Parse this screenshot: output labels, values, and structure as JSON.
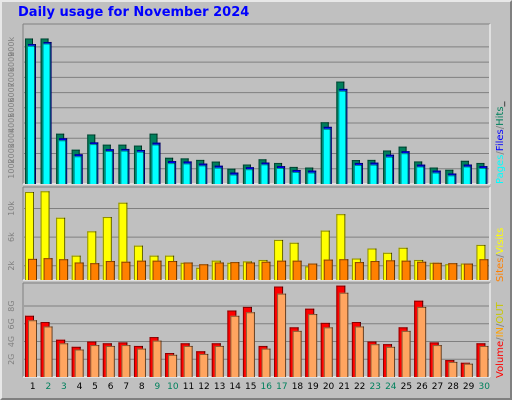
{
  "title": "Daily usage for November 2024",
  "colors": {
    "hits": "#00ffff",
    "files": "#0000ff",
    "pages": "#00805c",
    "sites": "#ff8000",
    "visits": "#ffff00",
    "volume": "#ff0000",
    "in_out": "#ffa560",
    "panel_bg": "#c0c0c0",
    "grid": "#808080",
    "weekend_label": "#00805c",
    "weekday_label": "#000000"
  },
  "chart_data": [
    {
      "type": "bar",
      "title": "Daily usage for November 2024",
      "legend": [
        "Pages",
        "/",
        "Files",
        "/",
        "Hits",
        "_"
      ],
      "y_ticks": [
        "100k",
        "200k",
        "300k",
        "400k",
        "500k",
        "600k",
        "700k",
        "800k",
        "900k"
      ],
      "ylim": [
        0,
        1050000
      ],
      "categories": [
        "1",
        "2",
        "3",
        "4",
        "5",
        "6",
        "7",
        "8",
        "9",
        "10",
        "11",
        "12",
        "13",
        "14",
        "15",
        "16",
        "17",
        "18",
        "19",
        "20",
        "21",
        "22",
        "23",
        "24",
        "25",
        "26",
        "27",
        "28",
        "29",
        "30"
      ],
      "series": [
        {
          "name": "Hits",
          "values": [
            920000,
            935000,
            300000,
            195000,
            275000,
            230000,
            232000,
            225000,
            272000,
            150000,
            148000,
            135000,
            120000,
            75000,
            110000,
            142000,
            118000,
            92000,
            88000,
            375000,
            625000,
            138000,
            140000,
            192000,
            215000,
            128000,
            88000,
            70000,
            128000,
            118000
          ]
        },
        {
          "name": "Files",
          "values": [
            918000,
            932000,
            300000,
            195000,
            273000,
            228000,
            230000,
            223000,
            271000,
            150000,
            148000,
            134000,
            120000,
            75000,
            110000,
            141000,
            117000,
            92000,
            88000,
            375000,
            624000,
            138000,
            140000,
            192000,
            215000,
            127000,
            88000,
            69000,
            128000,
            117000
          ]
        },
        {
          "name": "Pages",
          "values": [
            955000,
            955000,
            330000,
            225000,
            325000,
            258000,
            258000,
            252000,
            330000,
            172000,
            168000,
            158000,
            147000,
            100000,
            128000,
            162000,
            138000,
            112000,
            108000,
            405000,
            672000,
            157000,
            158000,
            220000,
            245000,
            148000,
            108000,
            93000,
            152000,
            138000
          ]
        }
      ]
    },
    {
      "type": "bar",
      "legend": [
        "Sites",
        "/",
        "Visits"
      ],
      "y_ticks": [
        "2k",
        "6k",
        "10k"
      ],
      "ylim": [
        0,
        13000
      ],
      "categories": [
        "1",
        "2",
        "3",
        "4",
        "5",
        "6",
        "7",
        "8",
        "9",
        "10",
        "11",
        "12",
        "13",
        "14",
        "15",
        "16",
        "17",
        "18",
        "19",
        "20",
        "21",
        "22",
        "23",
        "24",
        "25",
        "26",
        "27",
        "28",
        "29",
        "30"
      ],
      "series": [
        {
          "name": "Visits",
          "values": [
            12300,
            12400,
            8700,
            3400,
            6800,
            8800,
            10800,
            4800,
            3400,
            3400,
            2400,
            1700,
            2700,
            2400,
            2600,
            2800,
            5600,
            5200,
            1900,
            6900,
            9200,
            3000,
            4400,
            3800,
            4500,
            2800,
            2400,
            2200,
            2300,
            4900
          ]
        },
        {
          "name": "Sites",
          "values": [
            2950,
            3050,
            2900,
            2450,
            2350,
            2650,
            2550,
            2700,
            2700,
            2650,
            2450,
            2200,
            2450,
            2500,
            2450,
            2550,
            2700,
            2700,
            2300,
            2850,
            2900,
            2500,
            2650,
            2750,
            2700,
            2550,
            2400,
            2350,
            2300,
            2900
          ]
        }
      ]
    },
    {
      "type": "bar",
      "legend": [
        "Volume",
        "/",
        "IN",
        "/",
        "OUT"
      ],
      "y_ticks": [
        "2G",
        "4G",
        "6G",
        "8G"
      ],
      "ylim": [
        0,
        10.6
      ],
      "categories": [
        "1",
        "2",
        "3",
        "4",
        "5",
        "6",
        "7",
        "8",
        "9",
        "10",
        "11",
        "12",
        "13",
        "14",
        "15",
        "16",
        "17",
        "18",
        "19",
        "20",
        "21",
        "22",
        "23",
        "24",
        "25",
        "26",
        "27",
        "28",
        "29",
        "30"
      ],
      "series": [
        {
          "name": "Volume",
          "values": [
            6.9,
            6.2,
            4.2,
            3.4,
            4.0,
            3.8,
            3.9,
            3.5,
            4.5,
            2.7,
            3.8,
            2.9,
            3.8,
            7.5,
            7.9,
            3.5,
            10.2,
            5.6,
            7.7,
            6.1,
            10.3,
            6.2,
            4.0,
            3.7,
            5.6,
            8.6,
            3.9,
            1.9,
            1.6,
            3.8
          ]
        },
        {
          "name": "IN",
          "values": [
            0.5,
            0.5,
            0.4,
            0.3,
            0.4,
            0.3,
            0.3,
            0.3,
            0.4,
            0.2,
            0.3,
            0.3,
            0.3,
            0.6,
            0.6,
            0.3,
            0.8,
            0.4,
            0.6,
            0.5,
            0.8,
            0.5,
            0.3,
            0.3,
            0.4,
            0.7,
            0.3,
            0.2,
            0.1,
            0.3
          ]
        },
        {
          "name": "OUT",
          "values": [
            6.4,
            5.7,
            3.8,
            3.1,
            3.6,
            3.5,
            3.6,
            3.2,
            4.1,
            2.5,
            3.5,
            2.6,
            3.5,
            6.9,
            7.3,
            3.2,
            9.4,
            5.2,
            7.1,
            5.6,
            9.5,
            5.7,
            3.7,
            3.4,
            5.2,
            7.9,
            3.6,
            1.7,
            1.5,
            3.5
          ]
        }
      ]
    }
  ],
  "x_labels": [
    "1",
    "2",
    "3",
    "4",
    "5",
    "6",
    "7",
    "8",
    "9",
    "10",
    "11",
    "12",
    "13",
    "14",
    "15",
    "16",
    "17",
    "18",
    "19",
    "20",
    "21",
    "22",
    "23",
    "24",
    "25",
    "26",
    "27",
    "28",
    "29",
    "30"
  ],
  "weekend_days": [
    2,
    3,
    9,
    10,
    16,
    17,
    23,
    24,
    30
  ]
}
